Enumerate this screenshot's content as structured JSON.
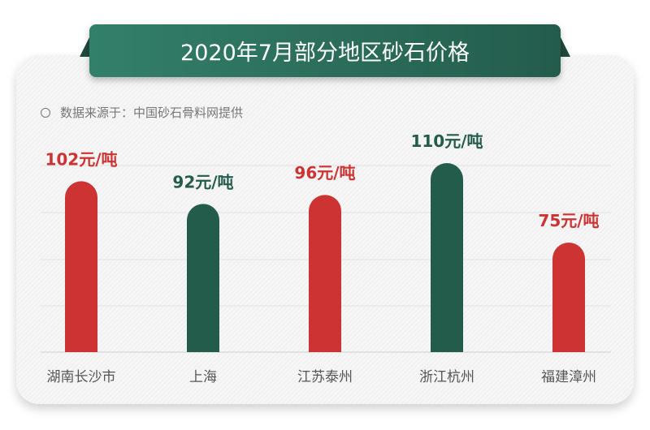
{
  "title": "2020年7月部分地区砂石价格",
  "source": "数据来源于：中国砂石骨料网提供",
  "colors": {
    "red": "#cc3333",
    "green": "#245c4c"
  },
  "chart_data": {
    "type": "bar",
    "title": "2020年7月部分地区砂石价格",
    "categories": [
      "湖南长沙市",
      "上海",
      "江苏泰州",
      "浙江杭州",
      "福建漳州"
    ],
    "values": [
      102,
      92,
      96,
      110,
      75
    ],
    "unit": "元/吨",
    "data_labels": [
      "102元/吨",
      "92元/吨",
      "96元/吨",
      "110元/吨",
      "75元/吨"
    ],
    "bar_colors": [
      "#cc3333",
      "#245c4c",
      "#cc3333",
      "#245c4c",
      "#cc3333"
    ],
    "grid": true
  }
}
